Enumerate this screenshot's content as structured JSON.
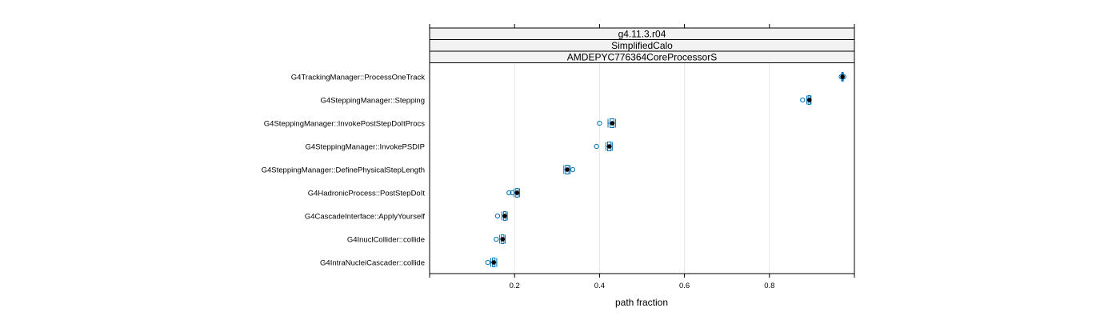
{
  "chart_data": {
    "type": "box",
    "strips": [
      "g4.11.3.r04",
      "SimplifiedCalo",
      "AMDEPYC776364CoreProcessorS"
    ],
    "xlabel": "path fraction",
    "xlim": [
      0.0,
      1.0
    ],
    "xticks": [
      0.2,
      0.4,
      0.6,
      0.8
    ],
    "xtick_labels": [
      "0.2",
      "0.4",
      "0.6",
      "0.8"
    ],
    "grid": true,
    "colors": {
      "box": "#0072b2",
      "median": "#000000",
      "grid": "#e6e6e6",
      "strip_bg": "#f2f2f2"
    },
    "categories": [
      "G4TrackingManager::ProcessOneTrack",
      "G4SteppingManager::Stepping",
      "G4SteppingManager::InvokePostStepDoItProcs",
      "G4SteppingManager::InvokePSDIP",
      "G4SteppingManager::DefinePhysicalStepLength",
      "G4HadronicProcess::PostStepDoIt",
      "G4CascadeInterface::ApplyYourself",
      "G4InuclCollider::collide",
      "G4IntraNucleiCascader::collide"
    ],
    "boxes": [
      {
        "min": 0.97,
        "q1": 0.971,
        "median": 0.972,
        "q3": 0.973,
        "max": 0.974,
        "outliers": [
          0.969,
          0.975
        ]
      },
      {
        "min": 0.888,
        "q1": 0.891,
        "median": 0.894,
        "q3": 0.896,
        "max": 0.898,
        "outliers": [
          0.878
        ]
      },
      {
        "min": 0.42,
        "q1": 0.425,
        "median": 0.43,
        "q3": 0.434,
        "max": 0.438,
        "outliers": [
          0.4
        ]
      },
      {
        "min": 0.415,
        "q1": 0.419,
        "median": 0.423,
        "q3": 0.427,
        "max": 0.43,
        "outliers": [
          0.393
        ]
      },
      {
        "min": 0.316,
        "q1": 0.32,
        "median": 0.324,
        "q3": 0.328,
        "max": 0.331,
        "outliers": [
          0.337
        ]
      },
      {
        "min": 0.199,
        "q1": 0.203,
        "median": 0.206,
        "q3": 0.209,
        "max": 0.212,
        "outliers": [
          0.187,
          0.195
        ]
      },
      {
        "min": 0.17,
        "q1": 0.174,
        "median": 0.177,
        "q3": 0.18,
        "max": 0.183,
        "outliers": [
          0.16
        ]
      },
      {
        "min": 0.165,
        "q1": 0.169,
        "median": 0.172,
        "q3": 0.175,
        "max": 0.178,
        "outliers": [
          0.157
        ]
      },
      {
        "min": 0.144,
        "q1": 0.148,
        "median": 0.151,
        "q3": 0.154,
        "max": 0.158,
        "outliers": [
          0.137
        ]
      }
    ]
  }
}
